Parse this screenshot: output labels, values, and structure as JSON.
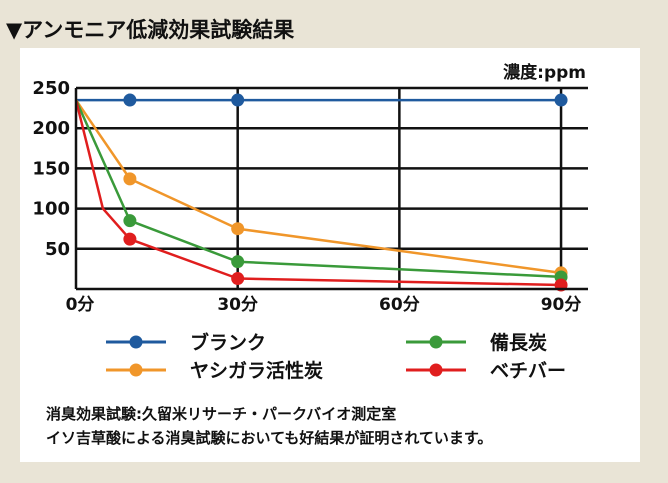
{
  "heading": "▼アンモニア低減効果試験結果",
  "chart_data": {
    "type": "line",
    "unit_label": "濃度:ppm",
    "title": "",
    "xlabel": "",
    "ylabel": "",
    "x_ticks": [
      "0分",
      "30分",
      "60分",
      "90分"
    ],
    "x_tick_values": [
      0,
      30,
      60,
      90
    ],
    "y_ticks": [
      "250",
      "200",
      "150",
      "100",
      "50"
    ],
    "y_tick_values": [
      250,
      200,
      150,
      100,
      50
    ],
    "xlim": [
      0,
      95
    ],
    "ylim": [
      0,
      250
    ],
    "grid": true,
    "legend_position": "bottom",
    "series": [
      {
        "name": "ブランク",
        "color": "#1f5a9e",
        "points": [
          [
            0,
            235
          ],
          [
            10,
            235
          ],
          [
            30,
            235
          ],
          [
            90,
            235
          ]
        ],
        "markers": [
          [
            10,
            235
          ],
          [
            30,
            235
          ],
          [
            90,
            235
          ]
        ]
      },
      {
        "name": "備長炭",
        "color": "#3a9a3a",
        "points": [
          [
            0,
            235
          ],
          [
            10,
            85
          ],
          [
            30,
            34
          ],
          [
            90,
            15
          ]
        ],
        "markers": [
          [
            10,
            85
          ],
          [
            30,
            34
          ],
          [
            90,
            15
          ]
        ]
      },
      {
        "name": "ヤシガラ活性炭",
        "color": "#f0962a",
        "points": [
          [
            0,
            235
          ],
          [
            10,
            137
          ],
          [
            30,
            75
          ],
          [
            90,
            20
          ]
        ],
        "markers": [
          [
            10,
            137
          ],
          [
            30,
            75
          ],
          [
            90,
            20
          ]
        ]
      },
      {
        "name": "ベチバー",
        "color": "#e01e1e",
        "points": [
          [
            0,
            235
          ],
          [
            5,
            100
          ],
          [
            10,
            62
          ],
          [
            30,
            13
          ],
          [
            90,
            5
          ]
        ],
        "markers": [
          [
            10,
            62
          ],
          [
            30,
            13
          ],
          [
            90,
            5
          ]
        ]
      }
    ]
  },
  "notes": {
    "line1": "消臭効果試験:久留米リサーチ・パークバイオ測定室",
    "line2": "イソ吉草酸による消臭試験においても好結果が証明されています。"
  }
}
